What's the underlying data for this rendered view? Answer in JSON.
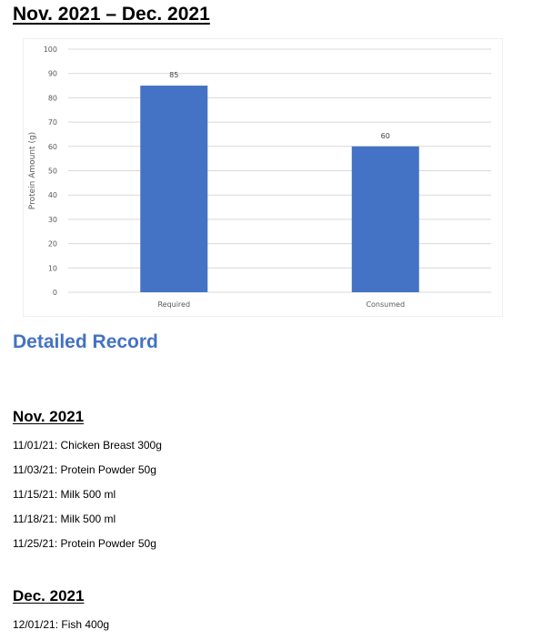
{
  "document": {
    "title": "Nov. 2021 – Dec. 2021",
    "detailed_heading": "Detailed Record",
    "months": [
      {
        "heading": "Nov. 2021",
        "entries": [
          "11/01/21: Chicken Breast 300g",
          "11/03/21: Protein Powder 50g",
          "11/15/21: Milk 500 ml",
          "11/18/21: Milk 500 ml",
          "11/25/21: Protein Powder 50g"
        ]
      },
      {
        "heading": "Dec. 2021",
        "entries": [
          "12/01/21: Fish 400g"
        ]
      }
    ]
  },
  "chart_data": {
    "type": "bar",
    "categories": [
      "Required",
      "Consumed"
    ],
    "values": [
      85,
      60
    ],
    "data_labels": [
      "85",
      "60"
    ],
    "title": "",
    "xlabel": "",
    "ylabel": "Protein Amount (g)",
    "ylim": [
      0,
      100
    ],
    "yticks": [
      0,
      10,
      20,
      30,
      40,
      50,
      60,
      70,
      80,
      90,
      100
    ],
    "grid": true,
    "legend": "none",
    "bar_color": "#4472c4",
    "grid_color": "#d9d9d9",
    "label_color": "#595959"
  }
}
